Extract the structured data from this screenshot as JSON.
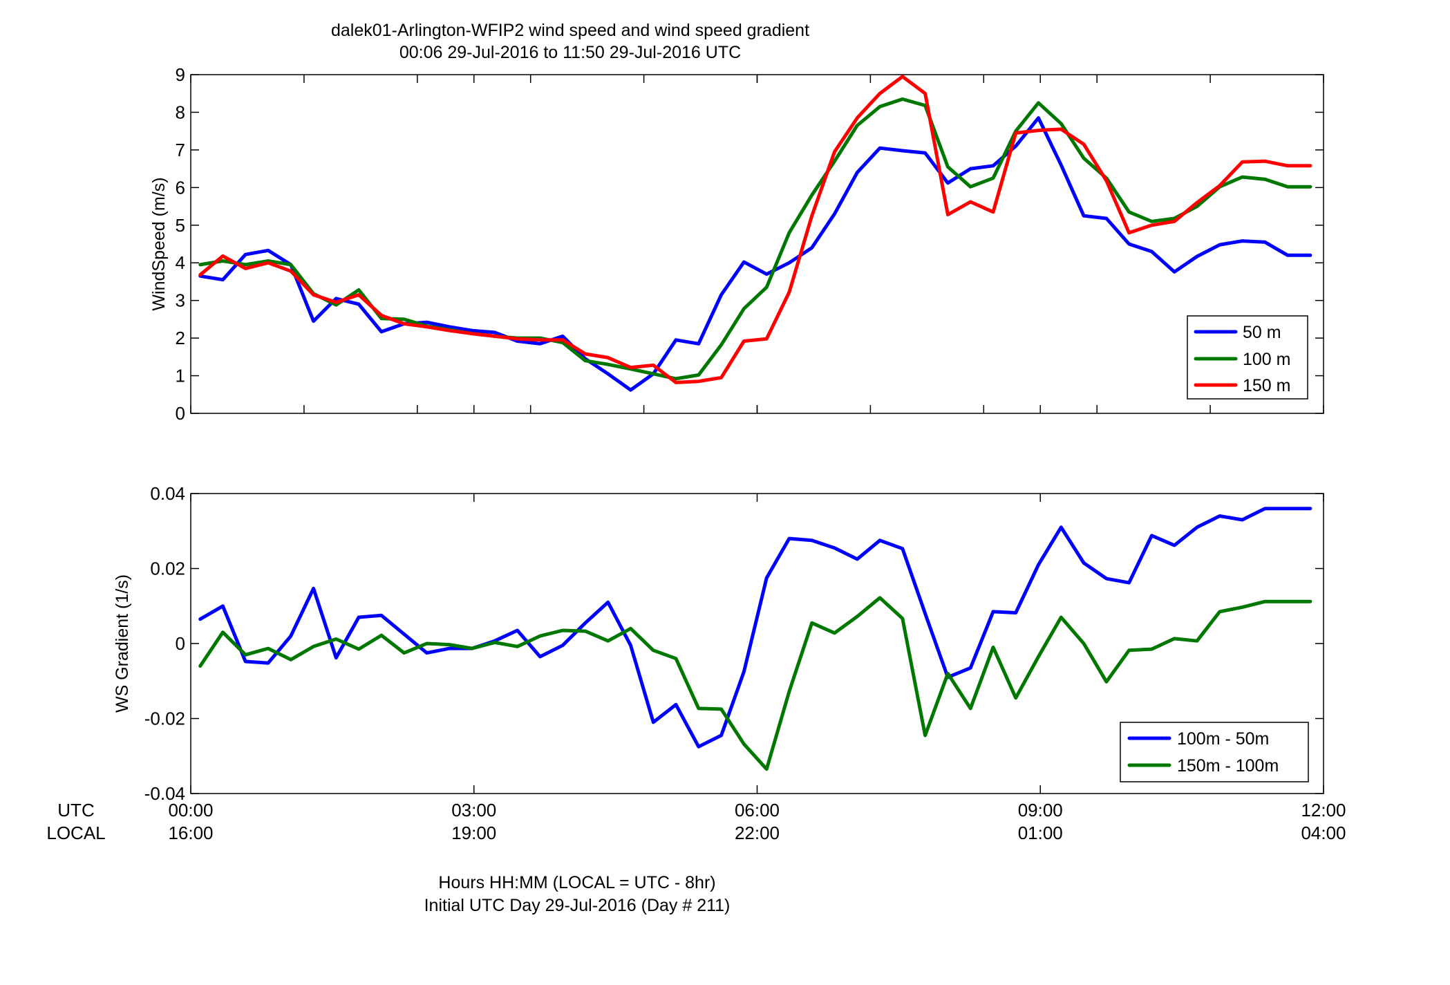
{
  "title": {
    "line1": "dalek01-Arlington-WFIP2  wind speed and wind speed gradient",
    "line2": "00:06 29-Jul-2016 to 11:50 29-Jul-2016  UTC"
  },
  "x_axis": {
    "row_labels": {
      "utc": "UTC",
      "local": "LOCAL"
    },
    "ticks": [
      {
        "value": 0,
        "utc": "00:00",
        "local": "16:00"
      },
      {
        "value": 3,
        "utc": "03:00",
        "local": "19:00"
      },
      {
        "value": 6,
        "utc": "06:00",
        "local": "22:00"
      },
      {
        "value": 9,
        "utc": "09:00",
        "local": "01:00"
      },
      {
        "value": 12,
        "utc": "12:00",
        "local": "04:00"
      }
    ],
    "xlabel_line1": "Hours HH:MM  (LOCAL = UTC - 8hr)",
    "xlabel_line2": "Initial UTC Day 29-Jul-2016 (Day # 211)"
  },
  "chart_data": [
    {
      "type": "line",
      "ylabel": "WindSpeed (m/s)",
      "xlim": [
        0,
        12
      ],
      "ylim": [
        0,
        9
      ],
      "yticks": [
        0,
        1,
        2,
        3,
        4,
        5,
        6,
        7,
        8,
        9
      ],
      "ytick_labels": [
        "0",
        "1",
        "2",
        "3",
        "4",
        "5",
        "6",
        "7",
        "8",
        "9"
      ],
      "xminor_ticks": [
        1.2,
        2.4,
        3.6,
        4.8,
        6,
        7.2,
        8.4,
        9.6,
        10.8
      ],
      "legend_position": "bottom-right",
      "x": [
        0.1,
        0.34,
        0.58,
        0.82,
        1.06,
        1.3,
        1.54,
        1.78,
        2.02,
        2.26,
        2.5,
        2.74,
        2.98,
        3.22,
        3.46,
        3.7,
        3.94,
        4.18,
        4.42,
        4.66,
        4.9,
        5.14,
        5.38,
        5.62,
        5.86,
        6.1,
        6.34,
        6.58,
        6.82,
        7.06,
        7.3,
        7.54,
        7.78,
        8.02,
        8.26,
        8.5,
        8.74,
        8.98,
        9.22,
        9.46,
        9.7,
        9.94,
        10.18,
        10.42,
        10.66,
        10.9,
        11.14,
        11.38,
        11.62,
        11.86
      ],
      "series": [
        {
          "name": "50 m",
          "color": "#0000ff",
          "values": [
            3.65,
            3.55,
            4.22,
            4.33,
            3.95,
            2.45,
            3.05,
            2.9,
            2.17,
            2.38,
            2.42,
            2.3,
            2.2,
            2.15,
            1.92,
            1.85,
            2.05,
            1.45,
            1.05,
            0.62,
            1.05,
            1.95,
            1.85,
            3.15,
            4.02,
            3.7,
            4.0,
            4.4,
            5.3,
            6.4,
            7.05,
            6.98,
            6.92,
            6.12,
            6.5,
            6.58,
            7.1,
            7.85,
            6.6,
            5.25,
            5.18,
            4.5,
            4.3,
            3.76,
            4.17,
            4.48,
            4.58,
            4.55,
            4.2,
            4.2
          ]
        },
        {
          "name": "100 m",
          "color": "#007800",
          "values": [
            3.95,
            4.05,
            3.95,
            4.05,
            3.95,
            3.18,
            2.88,
            3.28,
            2.52,
            2.5,
            2.32,
            2.22,
            2.12,
            2.05,
            2.0,
            2.0,
            1.88,
            1.4,
            1.3,
            1.18,
            1.05,
            0.92,
            1.02,
            1.82,
            2.78,
            3.35,
            4.8,
            5.8,
            6.7,
            7.65,
            8.15,
            8.35,
            8.18,
            6.55,
            6.02,
            6.25,
            7.5,
            8.25,
            7.7,
            6.78,
            6.25,
            5.35,
            5.1,
            5.18,
            5.5,
            6.02,
            6.28,
            6.22,
            6.02,
            6.02
          ]
        },
        {
          "name": "150 m",
          "color": "#ff0000",
          "values": [
            3.68,
            4.18,
            3.85,
            4.0,
            3.78,
            3.15,
            2.95,
            3.15,
            2.6,
            2.38,
            2.3,
            2.2,
            2.12,
            2.05,
            1.98,
            1.95,
            1.95,
            1.58,
            1.48,
            1.22,
            1.28,
            0.82,
            0.85,
            0.95,
            1.92,
            1.98,
            3.22,
            5.25,
            6.95,
            7.85,
            8.5,
            8.95,
            8.5,
            5.28,
            5.62,
            5.35,
            7.45,
            7.52,
            7.55,
            7.15,
            6.18,
            4.8,
            5.0,
            5.1,
            5.6,
            6.05,
            6.68,
            6.7,
            6.58,
            6.58
          ]
        }
      ]
    },
    {
      "type": "line",
      "ylabel": "WS Gradient (1/s)",
      "xlim": [
        0,
        12
      ],
      "ylim": [
        -0.04,
        0.04
      ],
      "yticks": [
        -0.04,
        -0.02,
        0,
        0.02,
        0.04
      ],
      "ytick_labels": [
        "-0.04",
        "-0.02",
        "0",
        "0.02",
        "0.04"
      ],
      "xminor_ticks": [],
      "legend_position": "bottom-right",
      "x": [
        0.1,
        0.34,
        0.58,
        0.82,
        1.06,
        1.3,
        1.54,
        1.78,
        2.02,
        2.26,
        2.5,
        2.74,
        2.98,
        3.22,
        3.46,
        3.7,
        3.94,
        4.18,
        4.42,
        4.66,
        4.9,
        5.14,
        5.38,
        5.62,
        5.86,
        6.1,
        6.34,
        6.58,
        6.82,
        7.06,
        7.3,
        7.54,
        7.78,
        8.02,
        8.26,
        8.5,
        8.74,
        8.98,
        9.22,
        9.46,
        9.7,
        9.94,
        10.18,
        10.42,
        10.66,
        10.9,
        11.14,
        11.38,
        11.62,
        11.86
      ],
      "series": [
        {
          "name": "100m - 50m",
          "color": "#0000ff",
          "values": [
            0.0065,
            0.01,
            -0.0048,
            -0.0052,
            0.002,
            0.0147,
            -0.0038,
            0.007,
            0.0075,
            0.0025,
            -0.0025,
            -0.0013,
            -0.0013,
            0.0007,
            0.0035,
            -0.0035,
            -0.0005,
            0.0055,
            0.011,
            -0.0005,
            -0.021,
            -0.0163,
            -0.0275,
            -0.0245,
            -0.0075,
            0.0175,
            0.028,
            0.0275,
            0.0255,
            0.0225,
            0.0275,
            0.0253,
            0.008,
            -0.009,
            -0.0065,
            0.0085,
            0.0082,
            0.021,
            0.031,
            0.0215,
            0.0173,
            0.0162,
            0.0288,
            0.0262,
            0.031,
            0.034,
            0.033,
            0.036,
            0.036,
            0.036
          ]
        },
        {
          "name": "150m - 100m",
          "color": "#007800",
          "values": [
            -0.006,
            0.003,
            -0.003,
            -0.0013,
            -0.0043,
            -0.0008,
            0.0012,
            -0.0015,
            0.0022,
            -0.0025,
            0.0,
            -0.0003,
            -0.0013,
            0.0003,
            -0.0008,
            0.002,
            0.0035,
            0.0033,
            0.0007,
            0.004,
            -0.0018,
            -0.004,
            -0.0173,
            -0.0175,
            -0.0268,
            -0.0335,
            -0.0128,
            0.0055,
            0.0028,
            0.0072,
            0.0122,
            0.0067,
            -0.0245,
            -0.008,
            -0.0173,
            -0.001,
            -0.0145,
            -0.0035,
            0.007,
            0.0,
            -0.0102,
            -0.0018,
            -0.0015,
            0.0013,
            0.0007,
            0.0085,
            0.0097,
            0.0112,
            0.0112,
            0.0112
          ]
        }
      ]
    }
  ]
}
